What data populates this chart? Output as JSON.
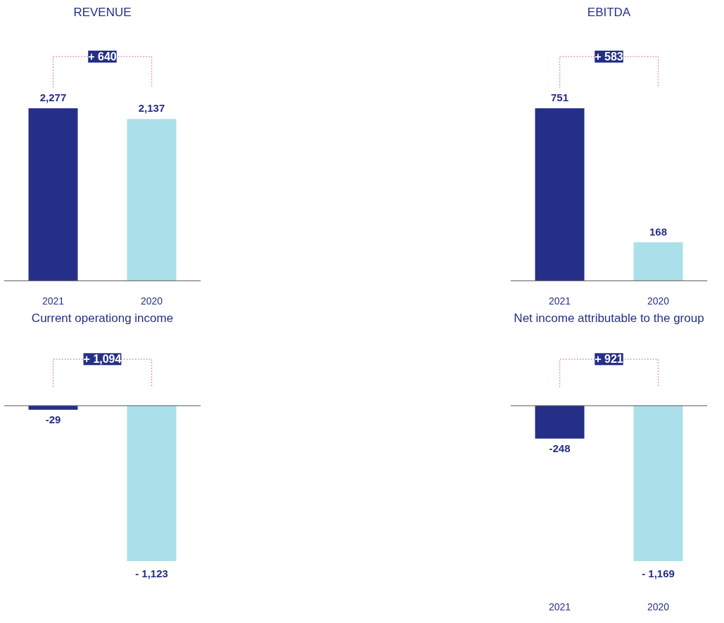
{
  "chart_data": [
    {
      "type": "bar",
      "title": "REVENUE",
      "categories": [
        "2021",
        "2020"
      ],
      "values": [
        2277,
        2137
      ],
      "colors": [
        "#262f87",
        "#abe0ea"
      ],
      "value_labels": [
        "2,277",
        "2,137"
      ],
      "annotations": [
        "+ 640"
      ],
      "grid": false
    },
    {
      "type": "bar",
      "title": "EBITDA",
      "categories": [
        "2021",
        "2020"
      ],
      "values": [
        751,
        168
      ],
      "colors": [
        "#262f87",
        "#abe0ea"
      ],
      "value_labels": [
        "751",
        "168"
      ],
      "annotations": [
        "+ 583"
      ],
      "grid": false
    },
    {
      "type": "bar",
      "title": "Current operationg income",
      "categories": [
        "2021",
        "2020"
      ],
      "values": [
        -29,
        -1123
      ],
      "colors": [
        "#262f87",
        "#abe0ea"
      ],
      "value_labels": [
        "-29",
        "- 1,123"
      ],
      "annotations": [
        "+ 1,094"
      ],
      "grid": false,
      "tick_labels": false
    },
    {
      "type": "bar",
      "title": "Net income attributable to the group",
      "categories": [
        "2021",
        "2020"
      ],
      "values": [
        -248,
        -1169
      ],
      "colors": [
        "#262f87",
        "#abe0ea"
      ],
      "value_labels": [
        "-248",
        "- 1,169"
      ],
      "annotations": [
        "+ 921"
      ],
      "grid": false
    }
  ]
}
